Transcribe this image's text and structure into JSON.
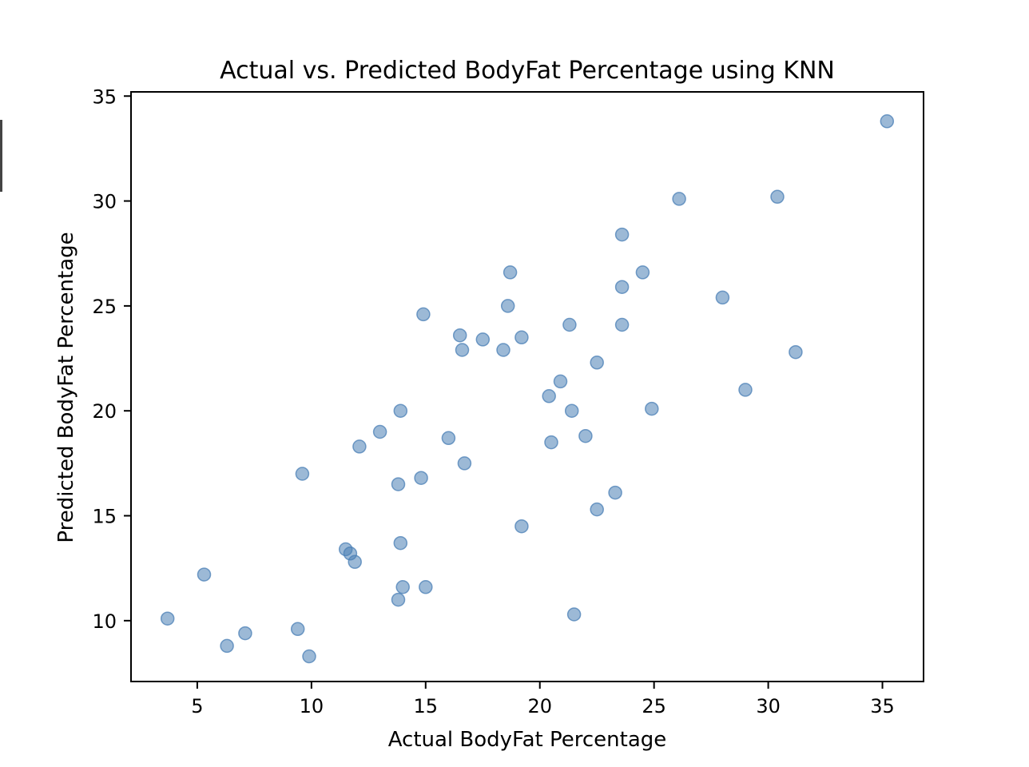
{
  "chart_data": {
    "type": "scatter",
    "title": "Actual vs. Predicted BodyFat Percentage using KNN",
    "xlabel": "Actual BodyFat Percentage",
    "ylabel": "Predicted BodyFat Percentage",
    "xlim": [
      2.1,
      36.8
    ],
    "ylim": [
      7.1,
      35.2
    ],
    "xticks": [
      5,
      10,
      15,
      20,
      25,
      30,
      35
    ],
    "yticks": [
      10,
      15,
      20,
      25,
      30,
      35
    ],
    "grid": false,
    "marker_color": "#4a7fb5",
    "marker_opacity": 0.55,
    "series": [
      {
        "points": [
          [
            3.7,
            10.1
          ],
          [
            5.3,
            12.2
          ],
          [
            6.3,
            8.8
          ],
          [
            7.1,
            9.4
          ],
          [
            9.4,
            9.6
          ],
          [
            9.9,
            8.3
          ],
          [
            9.6,
            17.0
          ],
          [
            11.5,
            13.4
          ],
          [
            11.7,
            13.2
          ],
          [
            11.9,
            12.8
          ],
          [
            12.1,
            18.3
          ],
          [
            13.0,
            19.0
          ],
          [
            13.8,
            16.5
          ],
          [
            13.9,
            20.0
          ],
          [
            13.9,
            13.7
          ],
          [
            14.0,
            11.6
          ],
          [
            13.8,
            11.0
          ],
          [
            14.8,
            16.8
          ],
          [
            14.9,
            24.6
          ],
          [
            15.0,
            11.6
          ],
          [
            16.0,
            18.7
          ],
          [
            16.5,
            23.6
          ],
          [
            16.6,
            22.9
          ],
          [
            16.7,
            17.5
          ],
          [
            17.5,
            23.4
          ],
          [
            18.4,
            22.9
          ],
          [
            18.6,
            25.0
          ],
          [
            18.7,
            26.6
          ],
          [
            19.2,
            23.5
          ],
          [
            19.2,
            14.5
          ],
          [
            20.4,
            20.7
          ],
          [
            20.5,
            18.5
          ],
          [
            20.9,
            21.4
          ],
          [
            21.3,
            24.1
          ],
          [
            21.4,
            20.0
          ],
          [
            21.5,
            10.3
          ],
          [
            22.0,
            18.8
          ],
          [
            22.5,
            22.3
          ],
          [
            22.5,
            15.3
          ],
          [
            23.3,
            16.1
          ],
          [
            23.6,
            28.4
          ],
          [
            23.6,
            25.9
          ],
          [
            23.6,
            24.1
          ],
          [
            24.5,
            26.6
          ],
          [
            24.9,
            20.1
          ],
          [
            26.1,
            30.1
          ],
          [
            28.0,
            25.4
          ],
          [
            29.0,
            21.0
          ],
          [
            30.4,
            30.2
          ],
          [
            31.2,
            22.8
          ],
          [
            35.2,
            33.8
          ]
        ]
      }
    ]
  }
}
